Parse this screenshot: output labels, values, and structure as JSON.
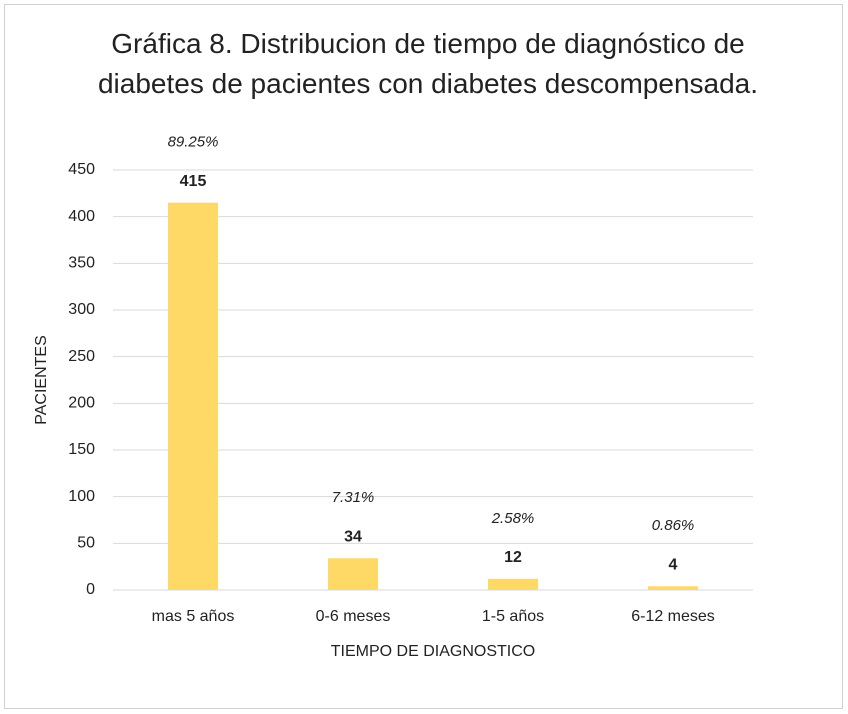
{
  "chart_data": {
    "type": "bar",
    "title": "Gráfica 8. Distribucion de tiempo de diagnóstico de diabetes de pacientes con diabetes descompensada.",
    "x_label": "TIEMPO DE DIAGNOSTICO",
    "y_label": "PACIENTES",
    "categories": [
      "mas 5 años",
      "0-6 meses",
      "1-5 años",
      "6-12 meses"
    ],
    "values": [
      415,
      34,
      12,
      4
    ],
    "annotations": [
      "89.25%",
      "7.31%",
      "2.58%",
      "0.86%"
    ],
    "color": "#ffd966",
    "ylim": [
      0,
      450
    ],
    "yticks": [
      0,
      50,
      100,
      150,
      200,
      250,
      300,
      350,
      400,
      450
    ],
    "grid": true
  }
}
